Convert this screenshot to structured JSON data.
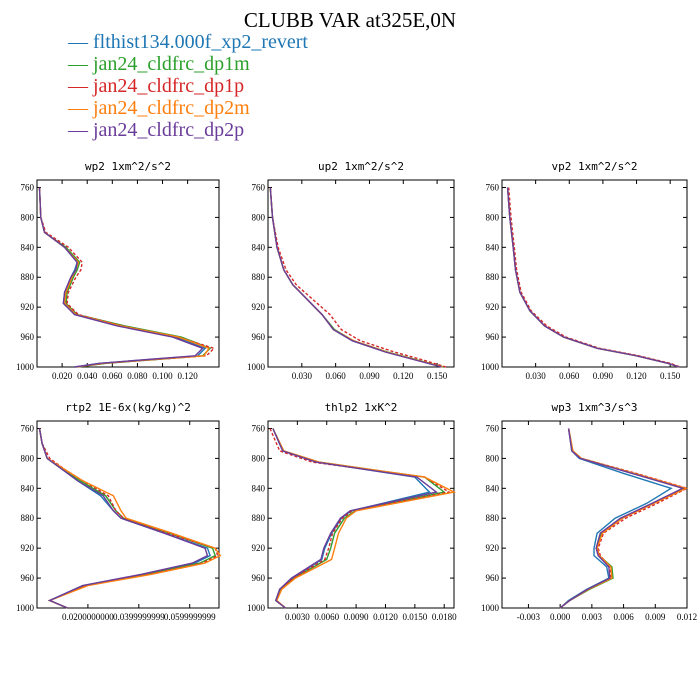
{
  "title": "CLUBB VAR at325E,0N",
  "legend": [
    {
      "name": "flthist134.000f_xp2_revert",
      "color": "#1f77b4",
      "dash": false
    },
    {
      "name": "jan24_cldfrc_dp1m",
      "color": "#2ca02c",
      "dash": false
    },
    {
      "name": "jan24_cldfrc_dp1p",
      "color": "#d62728",
      "dash": true
    },
    {
      "name": "jan24_cldfrc_dp2m",
      "color": "#ff7f0e",
      "dash": false
    },
    {
      "name": "jan24_cldfrc_dp2p",
      "color": "#6a3d9a",
      "dash": false
    }
  ],
  "chart_data": [
    {
      "type": "line",
      "title": "wp2  1xm^2/s^2",
      "xlim": [
        0,
        0.145
      ],
      "ylim": [
        750,
        1000
      ],
      "xticks": [
        0.02,
        0.04,
        0.06,
        0.08,
        0.1,
        0.12
      ],
      "xtick_labels": [
        "0.020",
        "0.040",
        "0.060",
        "0.080",
        "0.100",
        "0.120"
      ],
      "yticks": [
        760,
        800,
        840,
        880,
        920,
        960,
        1000
      ],
      "y": [
        760,
        800,
        820,
        840,
        860,
        870,
        880,
        900,
        915,
        930,
        945,
        960,
        975,
        985,
        990,
        995,
        1000
      ],
      "series": [
        {
          "x": [
            0.002,
            0.003,
            0.006,
            0.022,
            0.032,
            0.03,
            0.027,
            0.022,
            0.021,
            0.03,
            0.065,
            0.11,
            0.134,
            0.128,
            0.09,
            0.05,
            0.03
          ]
        },
        {
          "x": [
            0.002,
            0.003,
            0.006,
            0.023,
            0.034,
            0.032,
            0.029,
            0.024,
            0.023,
            0.032,
            0.07,
            0.115,
            0.138,
            0.132,
            0.095,
            0.055,
            0.032
          ]
        },
        {
          "x": [
            0.002,
            0.003,
            0.007,
            0.025,
            0.036,
            0.035,
            0.031,
            0.025,
            0.024,
            0.033,
            0.068,
            0.112,
            0.141,
            0.135,
            0.094,
            0.054,
            0.031
          ]
        },
        {
          "x": [
            0.002,
            0.003,
            0.006,
            0.022,
            0.033,
            0.031,
            0.028,
            0.023,
            0.022,
            0.031,
            0.067,
            0.113,
            0.137,
            0.133,
            0.092,
            0.052,
            0.031
          ]
        },
        {
          "x": [
            0.002,
            0.003,
            0.006,
            0.022,
            0.032,
            0.031,
            0.027,
            0.022,
            0.021,
            0.03,
            0.064,
            0.108,
            0.132,
            0.126,
            0.088,
            0.05,
            0.03
          ]
        }
      ]
    },
    {
      "type": "line",
      "title": "up2  1xm^2/s^2",
      "xlim": [
        0,
        0.165
      ],
      "ylim": [
        750,
        1000
      ],
      "xticks": [
        0.03,
        0.06,
        0.09,
        0.12,
        0.15
      ],
      "xtick_labels": [
        "0.030",
        "0.060",
        "0.090",
        "0.120",
        "0.150"
      ],
      "yticks": [
        760,
        800,
        840,
        880,
        920,
        960,
        1000
      ],
      "y": [
        760,
        800,
        840,
        870,
        890,
        910,
        930,
        950,
        965,
        980,
        990,
        1000
      ],
      "series": [
        {
          "x": [
            0.002,
            0.004,
            0.008,
            0.014,
            0.022,
            0.035,
            0.048,
            0.058,
            0.075,
            0.105,
            0.13,
            0.155
          ]
        },
        {
          "x": [
            0.002,
            0.004,
            0.008,
            0.014,
            0.022,
            0.035,
            0.048,
            0.059,
            0.076,
            0.106,
            0.131,
            0.156
          ]
        },
        {
          "x": [
            0.002,
            0.004,
            0.009,
            0.016,
            0.025,
            0.04,
            0.055,
            0.065,
            0.082,
            0.112,
            0.136,
            0.158
          ]
        },
        {
          "x": [
            0.002,
            0.004,
            0.008,
            0.014,
            0.022,
            0.035,
            0.048,
            0.058,
            0.076,
            0.105,
            0.13,
            0.155
          ]
        },
        {
          "x": [
            0.002,
            0.004,
            0.008,
            0.014,
            0.022,
            0.035,
            0.048,
            0.058,
            0.075,
            0.104,
            0.129,
            0.154
          ]
        }
      ]
    },
    {
      "type": "line",
      "title": "vp2  1xm^2/s^2",
      "xlim": [
        0,
        0.165
      ],
      "ylim": [
        750,
        1000
      ],
      "xticks": [
        0.03,
        0.06,
        0.09,
        0.12,
        0.15
      ],
      "xtick_labels": [
        "0.030",
        "0.060",
        "0.090",
        "0.120",
        "0.150"
      ],
      "yticks": [
        760,
        800,
        840,
        880,
        920,
        960,
        1000
      ],
      "y": [
        760,
        800,
        840,
        870,
        900,
        925,
        945,
        960,
        975,
        985,
        995,
        1000
      ],
      "series": [
        {
          "x": [
            0.005,
            0.007,
            0.01,
            0.012,
            0.016,
            0.025,
            0.038,
            0.055,
            0.085,
            0.12,
            0.148,
            0.158
          ]
        },
        {
          "x": [
            0.005,
            0.007,
            0.01,
            0.012,
            0.016,
            0.025,
            0.038,
            0.055,
            0.085,
            0.12,
            0.148,
            0.158
          ]
        },
        {
          "x": [
            0.006,
            0.008,
            0.011,
            0.013,
            0.017,
            0.026,
            0.04,
            0.057,
            0.087,
            0.122,
            0.15,
            0.159
          ]
        },
        {
          "x": [
            0.005,
            0.007,
            0.01,
            0.012,
            0.016,
            0.025,
            0.038,
            0.055,
            0.085,
            0.12,
            0.148,
            0.158
          ]
        },
        {
          "x": [
            0.005,
            0.007,
            0.01,
            0.012,
            0.016,
            0.025,
            0.038,
            0.055,
            0.085,
            0.12,
            0.148,
            0.158
          ]
        }
      ]
    },
    {
      "type": "line",
      "title": "rtp2  1E-6x(kg/kg)^2",
      "xlim": [
        0,
        0.0715
      ],
      "ylim": [
        750,
        1000
      ],
      "xticks": [
        0.02,
        0.04,
        0.06
      ],
      "xtick_labels": [
        "0.0200000000",
        "0.0399999999",
        "0.0599999999"
      ],
      "yticks": [
        760,
        800,
        840,
        880,
        920,
        960,
        1000
      ],
      "y": [
        760,
        780,
        800,
        815,
        830,
        850,
        870,
        880,
        900,
        920,
        930,
        940,
        955,
        970,
        990,
        1000
      ],
      "series": [
        {
          "x": [
            0.001,
            0.002,
            0.004,
            0.01,
            0.016,
            0.025,
            0.03,
            0.033,
            0.05,
            0.067,
            0.068,
            0.062,
            0.042,
            0.018,
            0.005,
            0.012
          ]
        },
        {
          "x": [
            0.001,
            0.002,
            0.004,
            0.01,
            0.017,
            0.027,
            0.031,
            0.034,
            0.052,
            0.069,
            0.07,
            0.064,
            0.043,
            0.019,
            0.005,
            0.012
          ]
        },
        {
          "x": [
            0.001,
            0.002,
            0.005,
            0.011,
            0.018,
            0.028,
            0.031,
            0.034,
            0.051,
            0.07,
            0.071,
            0.065,
            0.044,
            0.019,
            0.005,
            0.012
          ]
        },
        {
          "x": [
            0.001,
            0.002,
            0.004,
            0.011,
            0.018,
            0.03,
            0.033,
            0.035,
            0.053,
            0.07,
            0.072,
            0.066,
            0.045,
            0.02,
            0.005,
            0.012
          ]
        },
        {
          "x": [
            0.001,
            0.002,
            0.004,
            0.01,
            0.016,
            0.026,
            0.03,
            0.033,
            0.05,
            0.066,
            0.067,
            0.061,
            0.041,
            0.018,
            0.005,
            0.012
          ]
        }
      ]
    },
    {
      "type": "line",
      "title": "thlp2  1xK^2",
      "xlim": [
        0,
        0.019
      ],
      "ylim": [
        750,
        1000
      ],
      "xticks": [
        0.003,
        0.006,
        0.009,
        0.012,
        0.015,
        0.018
      ],
      "xtick_labels": [
        "0.0030",
        "0.0060",
        "0.0090",
        "0.0120",
        "0.0150",
        "0.0180"
      ],
      "yticks": [
        760,
        800,
        840,
        880,
        920,
        960,
        1000
      ],
      "y": [
        760,
        790,
        805,
        825,
        845,
        870,
        880,
        900,
        920,
        935,
        960,
        975,
        990,
        1000
      ],
      "series": [
        {
          "x": [
            0.0005,
            0.0015,
            0.005,
            0.015,
            0.0165,
            0.0085,
            0.0075,
            0.0065,
            0.0058,
            0.0055,
            0.0025,
            0.0012,
            0.0008,
            0.0018
          ]
        },
        {
          "x": [
            0.0005,
            0.0016,
            0.0052,
            0.016,
            0.018,
            0.0089,
            0.0078,
            0.0068,
            0.0064,
            0.006,
            0.0027,
            0.0013,
            0.0008,
            0.0018
          ]
        },
        {
          "x": [
            0.0002,
            0.0012,
            0.0045,
            0.016,
            0.0185,
            0.0086,
            0.0076,
            0.0066,
            0.0062,
            0.0058,
            0.0026,
            0.0012,
            0.0008,
            0.0018
          ]
        },
        {
          "x": [
            0.0005,
            0.0016,
            0.0052,
            0.016,
            0.019,
            0.009,
            0.008,
            0.0072,
            0.0068,
            0.0065,
            0.0028,
            0.0014,
            0.0009,
            0.0018
          ]
        },
        {
          "x": [
            0.0005,
            0.0015,
            0.0049,
            0.0152,
            0.0172,
            0.0084,
            0.0074,
            0.0064,
            0.0057,
            0.0054,
            0.0024,
            0.0012,
            0.0008,
            0.0018
          ]
        }
      ]
    },
    {
      "type": "line",
      "title": "wp3  1xm^3/s^3",
      "xlim": [
        -0.0055,
        0.012
      ],
      "ylim": [
        750,
        1000
      ],
      "xticks": [
        -0.003,
        0.0,
        0.003,
        0.006,
        0.009,
        0.012
      ],
      "xtick_labels": [
        "-0.003",
        "0.000",
        "0.003",
        "0.006",
        "0.009",
        "0.012"
      ],
      "yticks": [
        760,
        800,
        840,
        880,
        920,
        960,
        1000
      ],
      "y": [
        760,
        790,
        800,
        820,
        840,
        860,
        880,
        900,
        920,
        930,
        945,
        960,
        975,
        990,
        1000
      ],
      "series": [
        {
          "x": [
            0.0008,
            0.0011,
            0.0018,
            0.006,
            0.0105,
            0.0082,
            0.0052,
            0.0035,
            0.0032,
            0.0032,
            0.0044,
            0.0046,
            0.0025,
            0.0008,
            0.0
          ]
        },
        {
          "x": [
            0.0008,
            0.0012,
            0.002,
            0.007,
            0.0118,
            0.0088,
            0.0058,
            0.0039,
            0.0035,
            0.0037,
            0.0049,
            0.005,
            0.0028,
            0.0009,
            0.0
          ]
        },
        {
          "x": [
            0.0008,
            0.0012,
            0.002,
            0.0072,
            0.012,
            0.0092,
            0.0062,
            0.0041,
            0.0036,
            0.0038,
            0.0047,
            0.0048,
            0.0026,
            0.0009,
            0.0
          ]
        },
        {
          "x": [
            0.0008,
            0.0012,
            0.002,
            0.007,
            0.0119,
            0.0089,
            0.0059,
            0.004,
            0.0035,
            0.0037,
            0.0048,
            0.0049,
            0.0027,
            0.0009,
            0.0
          ]
        },
        {
          "x": [
            0.0008,
            0.0011,
            0.0019,
            0.0068,
            0.0116,
            0.0087,
            0.0057,
            0.0038,
            0.0034,
            0.0036,
            0.0046,
            0.0047,
            0.0026,
            0.0009,
            0.0
          ]
        }
      ]
    }
  ]
}
